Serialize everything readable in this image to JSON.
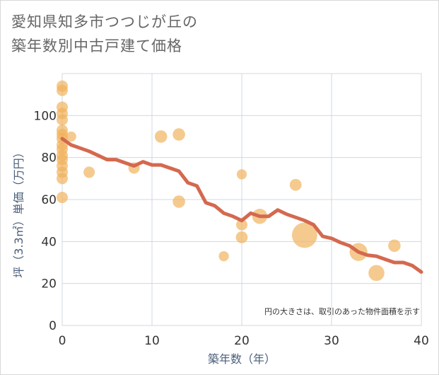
{
  "title_line1": "愛知県知多市つつじが丘の",
  "title_line2": "築年数別中古戸建て価格",
  "chart_data": {
    "type": "scatter",
    "xlabel": "築年数（年）",
    "ylabel": "坪（3.3㎡）単価（万円）",
    "xlim": [
      0,
      40
    ],
    "ylim": [
      0,
      120
    ],
    "xticks": [
      "0",
      "10",
      "20",
      "30",
      "40"
    ],
    "yticks": [
      "0",
      "20",
      "40",
      "60",
      "80",
      "100"
    ],
    "grid": true,
    "note": "円の大きさは、取引のあった物件面積を示す",
    "colors": {
      "bubble": "#f0b15a",
      "trend": "#d4694f",
      "grid": "#cfd8e3"
    },
    "points": [
      {
        "x": 0,
        "y": 114,
        "s": 1
      },
      {
        "x": 0,
        "y": 112,
        "s": 1
      },
      {
        "x": 0,
        "y": 104,
        "s": 1
      },
      {
        "x": 0,
        "y": 101,
        "s": 1
      },
      {
        "x": 0,
        "y": 98,
        "s": 1
      },
      {
        "x": 0,
        "y": 93,
        "s": 1
      },
      {
        "x": 0,
        "y": 91,
        "s": 1
      },
      {
        "x": 0,
        "y": 89,
        "s": 1
      },
      {
        "x": 0,
        "y": 86,
        "s": 1
      },
      {
        "x": 0,
        "y": 84,
        "s": 1
      },
      {
        "x": 0,
        "y": 81,
        "s": 1
      },
      {
        "x": 0,
        "y": 79,
        "s": 1
      },
      {
        "x": 0,
        "y": 76,
        "s": 1
      },
      {
        "x": 0,
        "y": 73,
        "s": 1
      },
      {
        "x": 0,
        "y": 70,
        "s": 1
      },
      {
        "x": 0,
        "y": 61,
        "s": 1
      },
      {
        "x": 1,
        "y": 90,
        "s": 0.8
      },
      {
        "x": 3,
        "y": 73,
        "s": 1
      },
      {
        "x": 8,
        "y": 75,
        "s": 1
      },
      {
        "x": 11,
        "y": 90,
        "s": 1.2
      },
      {
        "x": 13,
        "y": 91,
        "s": 1.2
      },
      {
        "x": 13,
        "y": 59,
        "s": 1.2
      },
      {
        "x": 18,
        "y": 33,
        "s": 0.8
      },
      {
        "x": 20,
        "y": 72,
        "s": 0.8
      },
      {
        "x": 20,
        "y": 48,
        "s": 1
      },
      {
        "x": 20,
        "y": 42,
        "s": 1.1
      },
      {
        "x": 22,
        "y": 52,
        "s": 1.8
      },
      {
        "x": 26,
        "y": 67,
        "s": 1.1
      },
      {
        "x": 27,
        "y": 43,
        "s": 5
      },
      {
        "x": 33,
        "y": 35,
        "s": 2.5
      },
      {
        "x": 35,
        "y": 25,
        "s": 2
      },
      {
        "x": 37,
        "y": 38,
        "s": 1.2
      }
    ],
    "trend": [
      {
        "x": 0,
        "y": 89
      },
      {
        "x": 1,
        "y": 86
      },
      {
        "x": 2,
        "y": 84.5
      },
      {
        "x": 3,
        "y": 83
      },
      {
        "x": 4,
        "y": 81
      },
      {
        "x": 5,
        "y": 79
      },
      {
        "x": 6,
        "y": 79
      },
      {
        "x": 7,
        "y": 77.5
      },
      {
        "x": 8,
        "y": 76
      },
      {
        "x": 9,
        "y": 78
      },
      {
        "x": 10,
        "y": 76.5
      },
      {
        "x": 11,
        "y": 76.5
      },
      {
        "x": 12,
        "y": 75
      },
      {
        "x": 13,
        "y": 73.5
      },
      {
        "x": 14,
        "y": 68
      },
      {
        "x": 15,
        "y": 66.5
      },
      {
        "x": 16,
        "y": 58.5
      },
      {
        "x": 17,
        "y": 57
      },
      {
        "x": 18,
        "y": 53.5
      },
      {
        "x": 19,
        "y": 52
      },
      {
        "x": 20,
        "y": 50
      },
      {
        "x": 21,
        "y": 53.5
      },
      {
        "x": 22,
        "y": 52
      },
      {
        "x": 23,
        "y": 52
      },
      {
        "x": 24,
        "y": 55
      },
      {
        "x": 25,
        "y": 53
      },
      {
        "x": 26,
        "y": 51.5
      },
      {
        "x": 27,
        "y": 50
      },
      {
        "x": 28,
        "y": 48
      },
      {
        "x": 29,
        "y": 42.5
      },
      {
        "x": 30,
        "y": 41.5
      },
      {
        "x": 31,
        "y": 39.5
      },
      {
        "x": 32,
        "y": 38
      },
      {
        "x": 33,
        "y": 35
      },
      {
        "x": 34,
        "y": 33.5
      },
      {
        "x": 35,
        "y": 33
      },
      {
        "x": 36,
        "y": 31.5
      },
      {
        "x": 37,
        "y": 30
      },
      {
        "x": 38,
        "y": 30
      },
      {
        "x": 39,
        "y": 28.5
      },
      {
        "x": 40,
        "y": 25.5
      }
    ]
  }
}
